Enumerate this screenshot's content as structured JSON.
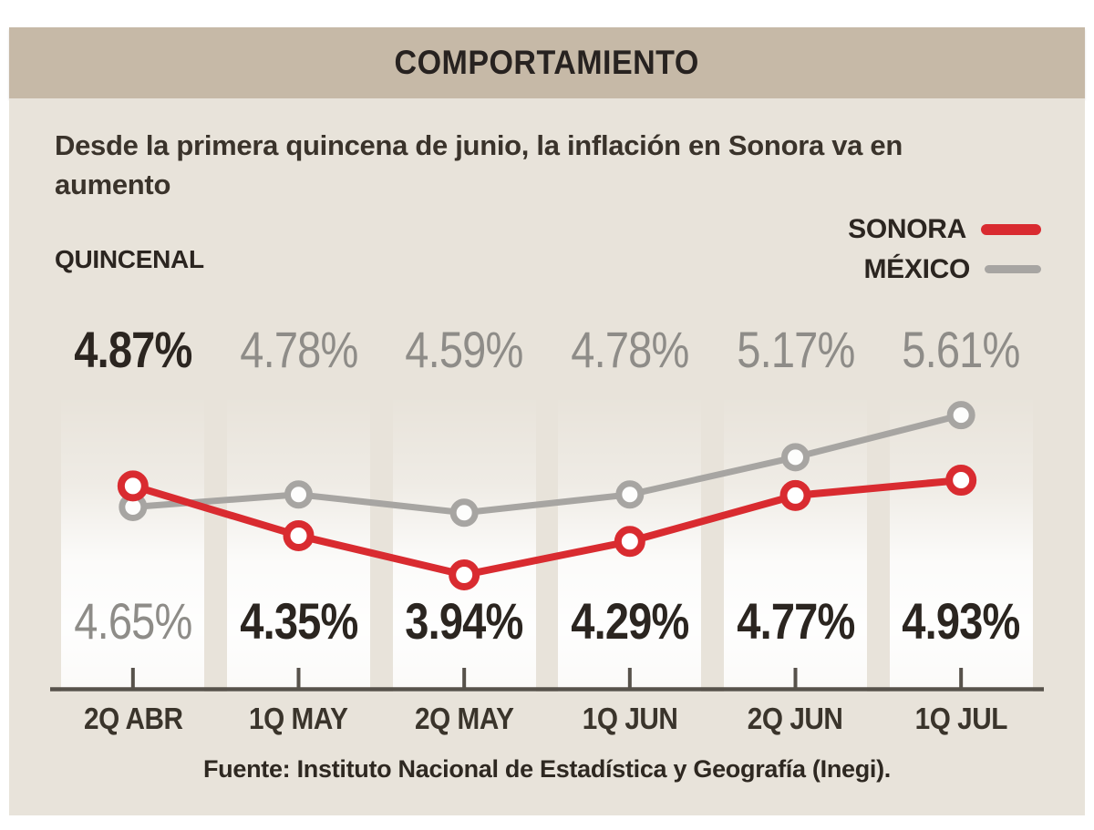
{
  "header": {
    "title": "COMPORTAMIENTO"
  },
  "intro": {
    "subtitle": "Desde la primera quincena de junio, la inflación en Sonora va en aumento",
    "frequency_label": "QUINCENAL"
  },
  "legend": {
    "position": "top-right",
    "items": [
      {
        "label": "SONORA",
        "color": "#d92b30"
      },
      {
        "label": "MÉXICO",
        "color": "#a7a5a2"
      }
    ]
  },
  "colors": {
    "header_band": "#c6b9a7",
    "panel_background": "#e8e3da",
    "sonora_red": "#d92b30",
    "mexico_gray": "#a7a5a2",
    "dark_text": "#2b2520",
    "gray_value_text": "#8e8c88",
    "axis": "#57524b"
  },
  "source": {
    "text": "Fuente: Instituto Nacional de Estadística y Geografía (Inegi)."
  },
  "chart_data": {
    "type": "line",
    "title": "COMPORTAMIENTO",
    "subtitle": "Desde la primera quincena de junio, la inflación en Sonora va en aumento",
    "categories": [
      "2Q ABR",
      "1Q MAY",
      "2Q MAY",
      "1Q JUN",
      "2Q JUN",
      "1Q JUL"
    ],
    "unit": "%",
    "series": [
      {
        "name": "SONORA",
        "color": "#d92b30",
        "values": [
          4.87,
          4.35,
          3.94,
          4.29,
          4.77,
          4.93
        ],
        "labels": [
          "4.87%",
          "4.35%",
          "3.94%",
          "4.29%",
          "4.77%",
          "4.93%"
        ]
      },
      {
        "name": "MÉXICO",
        "color": "#a7a5a2",
        "values": [
          4.65,
          4.78,
          4.59,
          4.78,
          5.17,
          5.61
        ],
        "labels": [
          "4.65%",
          "4.78%",
          "4.59%",
          "4.78%",
          "5.17%",
          "5.61%"
        ]
      }
    ],
    "value_rows": {
      "note": "row above the lines shows the higher value of each period, row below shows the lower; SONORA values bold dark, MÉXICO values gray",
      "top": [
        "4.87%",
        "4.78%",
        "4.59%",
        "4.78%",
        "5.17%",
        "5.61%"
      ],
      "bottom": [
        "4.65%",
        "4.35%",
        "3.94%",
        "4.29%",
        "4.77%",
        "4.93%"
      ]
    },
    "ylim": [
      3.7,
      5.8
    ],
    "grid": false,
    "legend_position": "top-right"
  }
}
